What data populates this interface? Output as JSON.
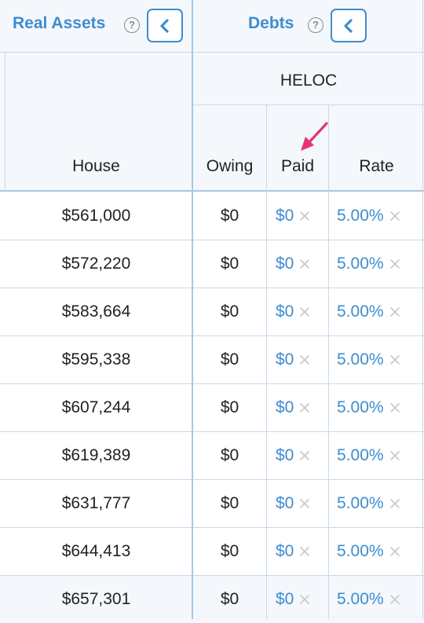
{
  "header": {
    "real_assets_title": "Real Assets",
    "debts_title": "Debts",
    "help_glyph": "?"
  },
  "group": {
    "heloc_label": "HELOC"
  },
  "columns": {
    "house": "House",
    "owing": "Owing",
    "paid": "Paid",
    "rate": "Rate"
  },
  "rows": [
    {
      "house": "$561,000",
      "owing": "$0",
      "paid": "$0",
      "rate": "5.00%"
    },
    {
      "house": "$572,220",
      "owing": "$0",
      "paid": "$0",
      "rate": "5.00%"
    },
    {
      "house": "$583,664",
      "owing": "$0",
      "paid": "$0",
      "rate": "5.00%"
    },
    {
      "house": "$595,338",
      "owing": "$0",
      "paid": "$0",
      "rate": "5.00%"
    },
    {
      "house": "$607,244",
      "owing": "$0",
      "paid": "$0",
      "rate": "5.00%"
    },
    {
      "house": "$619,389",
      "owing": "$0",
      "paid": "$0",
      "rate": "5.00%"
    },
    {
      "house": "$631,777",
      "owing": "$0",
      "paid": "$0",
      "rate": "5.00%"
    },
    {
      "house": "$644,413",
      "owing": "$0",
      "paid": "$0",
      "rate": "5.00%"
    },
    {
      "house": "$657,301",
      "owing": "$0",
      "paid": "$0",
      "rate": "5.00%"
    }
  ],
  "icons": {
    "help": "question-circle-icon",
    "collapse": "chevron-left-icon",
    "clear": "x-icon",
    "annotation": "pink-arrow-icon"
  },
  "colors": {
    "accent": "#3e8ccf",
    "header_bg": "#f4f8fc",
    "grid": "#c7d9ea",
    "clear_x": "#c8c8c8",
    "annotation_arrow": "#e8336d"
  }
}
